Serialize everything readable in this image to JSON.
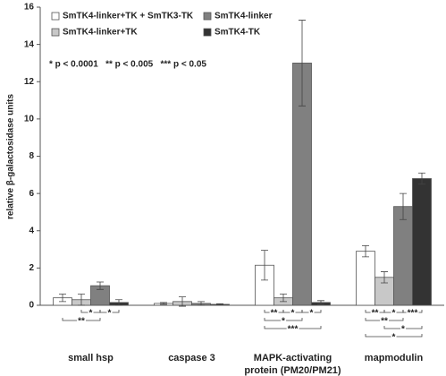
{
  "chart_data": {
    "type": "bar",
    "y_label": "relative β-galactosidase units",
    "annotation": "* p < 0.0001   ** p < 0.005   *** p < 0.05",
    "categories": [
      "small hsp",
      "caspase 3",
      "MAPK-activating protein (PM20/PM21)",
      "mapmodulin"
    ],
    "series": [
      {
        "name": "SmTK4-linker+TK + SmTK3-TK",
        "color": "#ffffff",
        "values": [
          0.4,
          0.1,
          2.15,
          2.9
        ],
        "errors": [
          0.2,
          0.05,
          0.8,
          0.3
        ]
      },
      {
        "name": "SmTK4-linker+TK",
        "color": "#c8c8c8",
        "values": [
          0.3,
          0.2,
          0.4,
          1.5
        ],
        "errors": [
          0.3,
          0.25,
          0.2,
          0.3
        ]
      },
      {
        "name": "SmTK4-linker",
        "color": "#808080",
        "values": [
          1.05,
          0.1,
          13.0,
          5.3
        ],
        "errors": [
          0.2,
          0.1,
          2.3,
          0.7
        ]
      },
      {
        "name": "SmTK4-TK",
        "color": "#333333",
        "values": [
          0.15,
          0.05,
          0.15,
          6.8
        ],
        "errors": [
          0.15,
          0.03,
          0.1,
          0.3
        ]
      }
    ],
    "significance": [
      {
        "category": 0,
        "series": [
          1,
          2
        ],
        "label": "*"
      },
      {
        "category": 0,
        "series": [
          2,
          3
        ],
        "label": "*"
      },
      {
        "category": 0,
        "series": [
          0,
          2
        ],
        "label": "**"
      },
      {
        "category": 2,
        "series": [
          0,
          1
        ],
        "label": "**"
      },
      {
        "category": 2,
        "series": [
          1,
          2
        ],
        "label": "*"
      },
      {
        "category": 2,
        "series": [
          2,
          3
        ],
        "label": "*"
      },
      {
        "category": 2,
        "series": [
          0,
          2
        ],
        "label": "*"
      },
      {
        "category": 2,
        "series": [
          0,
          3
        ],
        "label": "***"
      },
      {
        "category": 3,
        "series": [
          0,
          1
        ],
        "label": "**"
      },
      {
        "category": 3,
        "series": [
          1,
          2
        ],
        "label": "*"
      },
      {
        "category": 3,
        "series": [
          2,
          3
        ],
        "label": "***"
      },
      {
        "category": 3,
        "series": [
          0,
          2
        ],
        "label": "**"
      },
      {
        "category": 3,
        "series": [
          1,
          3
        ],
        "label": "*"
      },
      {
        "category": 3,
        "series": [
          0,
          3
        ],
        "label": "*"
      }
    ],
    "ylim": [
      0,
      16
    ],
    "yticks": [
      0,
      2,
      4,
      6,
      8,
      10,
      12,
      14,
      16
    ],
    "grid": false
  }
}
